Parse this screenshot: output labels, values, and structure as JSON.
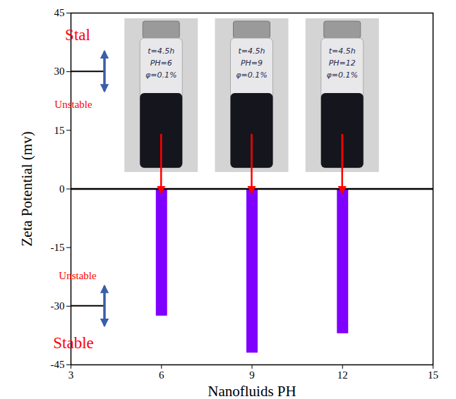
{
  "chart_data": {
    "type": "bar",
    "x": [
      6,
      9,
      12
    ],
    "values": [
      -32.5,
      -42,
      -37
    ],
    "color": "#7f00ff",
    "xlabel": "Nanofluids PH",
    "ylabel": "Zeta Potential (mv)",
    "xlim": [
      3,
      15
    ],
    "xticks": [
      3,
      6,
      9,
      12,
      15
    ],
    "ylim": [
      -45,
      45
    ],
    "yticks": [
      -45,
      -30,
      -15,
      0,
      15,
      30,
      45
    ],
    "stability_labels": [
      {
        "threshold": 30,
        "above": "Stal",
        "below": "Unstable"
      },
      {
        "threshold": -30,
        "above": "Unstable",
        "below": "Stable"
      }
    ],
    "vial_labels": [
      [
        "t=4.5h",
        "PH=6",
        "φ=0.1%"
      ],
      [
        "t=4.5h",
        "PH=9",
        "φ=0.1%"
      ],
      [
        "t=4.5h",
        "PH=12",
        "φ=0.1%"
      ]
    ]
  }
}
